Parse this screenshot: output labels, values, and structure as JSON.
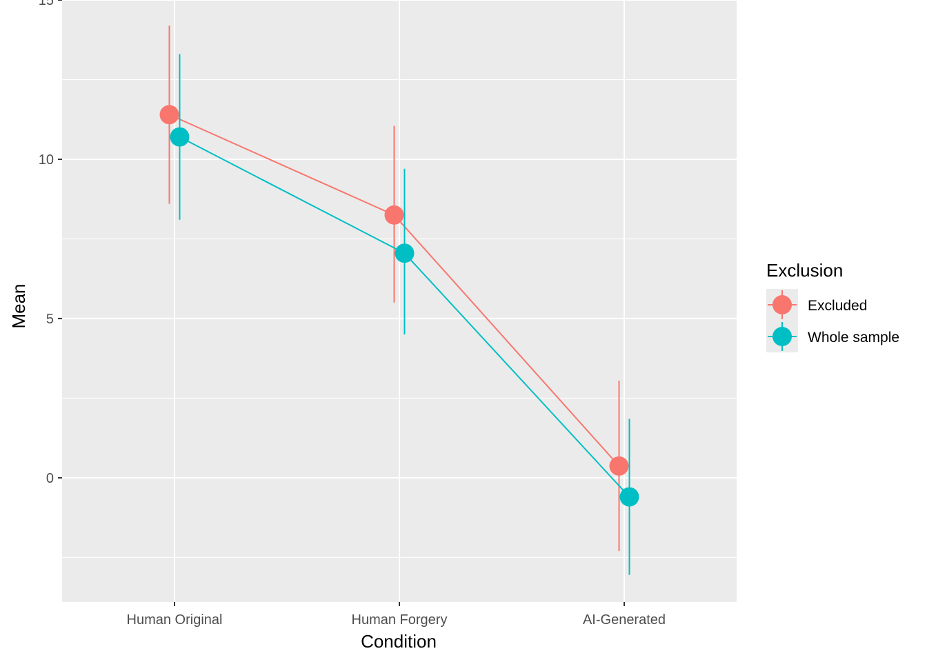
{
  "chart_data": {
    "type": "line",
    "xlabel": "Condition",
    "ylabel": "Mean",
    "categories": [
      "Human Original",
      "Human Forgery",
      "AI-Generated"
    ],
    "ylim": [
      -3.9,
      15
    ],
    "yticks": [
      0,
      5,
      10,
      15
    ],
    "grid": true,
    "legend": {
      "title": "Exclusion",
      "placement": "right"
    },
    "series": [
      {
        "name": "Excluded",
        "color": "#F8766D",
        "values": [
          11.4,
          8.25,
          0.37
        ],
        "lower": [
          8.6,
          5.5,
          -2.3
        ],
        "upper": [
          14.2,
          11.05,
          3.05
        ]
      },
      {
        "name": "Whole sample",
        "color": "#00BFC4",
        "values": [
          10.7,
          7.05,
          -0.6
        ],
        "lower": [
          8.1,
          4.5,
          -3.05
        ],
        "upper": [
          13.3,
          9.7,
          1.85
        ]
      }
    ]
  }
}
